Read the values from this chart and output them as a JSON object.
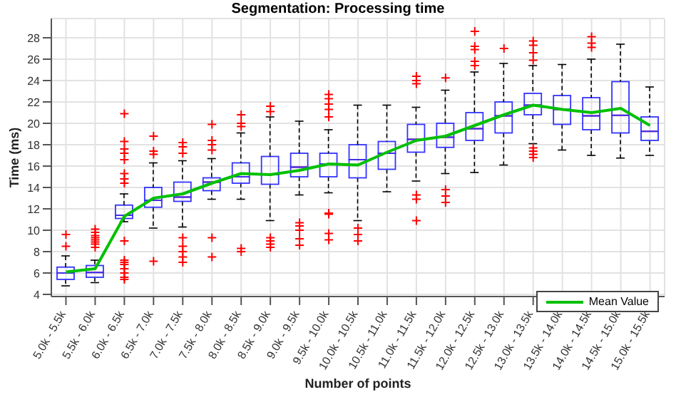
{
  "chart_data": {
    "type": "box",
    "title": "Segmentation: Processing time",
    "xlabel": "Number of points",
    "ylabel": "Time (ms)",
    "categories": [
      "5.0k - 5.5k",
      "5.5k - 6.0k",
      "6.0k - 6.5k",
      "6.5k - 7.0k",
      "7.0k - 7.5k",
      "7.5k - 8.0k",
      "8.0k - 8.5k",
      "8.5k - 9.0k",
      "9.0k - 9.5k",
      "9.5k - 10.0k",
      "10.0k - 10.5k",
      "10.5k - 11.0k",
      "11.0k - 11.5k",
      "11.5k - 12.0k",
      "12.0k - 12.5k",
      "12.5k - 13.0k",
      "13.0k - 13.5k",
      "13.5k - 14.0k",
      "14.0k - 14.5k",
      "14.5k - 15.0k",
      "15.0k - 15.5k"
    ],
    "ylim": [
      3.8,
      29.8
    ],
    "yticks": [
      4,
      6,
      8,
      10,
      12,
      14,
      16,
      18,
      20,
      22,
      24,
      26,
      28
    ],
    "grid": true,
    "legend": "bottom right",
    "series": [
      {
        "color": "#3333ff",
        "boxes": [
          {
            "low": 4.8,
            "q1": 5.4,
            "median": 6.0,
            "q3": 6.55,
            "high": 7.6,
            "outliers": [
              8.5,
              9.6
            ]
          },
          {
            "low": 5.1,
            "q1": 5.6,
            "median": 6.05,
            "q3": 6.7,
            "high": 7.2,
            "outliers": [
              8.4,
              8.7,
              8.9,
              9.1,
              9.3,
              9.5,
              9.8,
              10.1
            ]
          },
          {
            "low": 10.8,
            "q1": 11.1,
            "median": 11.4,
            "q3": 12.35,
            "high": 13.4,
            "outliers": [
              20.9,
              18.3,
              17.6,
              17.2,
              16.6,
              15.3,
              14.8,
              14.4,
              9.0,
              7.2,
              7.0,
              6.8,
              6.4,
              6.0,
              5.6,
              5.4
            ]
          },
          {
            "low": 10.2,
            "q1": 12.15,
            "median": 12.8,
            "q3": 14.0,
            "high": 16.3,
            "outliers": [
              18.8,
              17.4,
              17.1,
              7.1
            ]
          },
          {
            "low": 10.3,
            "q1": 12.7,
            "median": 13.1,
            "q3": 14.5,
            "high": 16.5,
            "outliers": [
              18.2,
              17.8,
              17.2,
              9.3,
              8.5,
              8.0,
              7.5,
              7.0
            ]
          },
          {
            "low": 12.9,
            "q1": 13.7,
            "median": 14.5,
            "q3": 14.9,
            "high": 16.7,
            "outliers": [
              19.9,
              18.4,
              18.0,
              17.5,
              9.3,
              7.5
            ]
          },
          {
            "low": 12.9,
            "q1": 14.4,
            "median": 15.0,
            "q3": 16.3,
            "high": 19.1,
            "outliers": [
              20.8,
              20.0,
              19.7,
              8.3,
              8.0
            ]
          },
          {
            "low": 10.9,
            "q1": 14.3,
            "median": 15.2,
            "q3": 16.9,
            "high": 20.6,
            "outliers": [
              21.6,
              21.1,
              9.3,
              9.0,
              8.7,
              8.4
            ]
          },
          {
            "low": 13.3,
            "q1": 15.0,
            "median": 15.9,
            "q3": 17.2,
            "high": 20.2,
            "outliers": [
              10.7,
              10.4,
              10.0,
              9.2,
              8.6
            ]
          },
          {
            "low": 13.5,
            "q1": 15.0,
            "median": 16.2,
            "q3": 17.2,
            "high": 19.4,
            "outliers": [
              22.7,
              22.3,
              21.8,
              21.3,
              20.6,
              11.6,
              11.5,
              9.7,
              9.1
            ]
          },
          {
            "low": 10.9,
            "q1": 14.9,
            "median": 16.6,
            "q3": 18.0,
            "high": 21.7,
            "outliers": [
              10.2,
              9.6,
              9.0
            ]
          },
          {
            "low": 13.6,
            "q1": 15.7,
            "median": 17.2,
            "q3": 18.3,
            "high": 21.7
          },
          {
            "low": 14.6,
            "q1": 17.3,
            "median": 18.5,
            "q3": 19.9,
            "high": 21.5,
            "outliers": [
              24.4,
              24.0,
              23.7,
              13.3,
              12.9,
              10.9
            ]
          },
          {
            "low": 15.3,
            "q1": 17.75,
            "median": 18.7,
            "q3": 20.0,
            "high": 23.1,
            "outliers": [
              24.25,
              13.8,
              13.2,
              12.6
            ]
          },
          {
            "low": 15.4,
            "q1": 18.4,
            "median": 19.5,
            "q3": 21.0,
            "high": 24.8,
            "outliers": [
              28.6,
              27.2,
              26.9,
              25.8,
              25.4
            ]
          },
          {
            "low": 16.1,
            "q1": 19.1,
            "median": 20.7,
            "q3": 22.0,
            "high": 25.6,
            "outliers": [
              27.0
            ]
          },
          {
            "low": 18.1,
            "q1": 20.8,
            "median": 21.7,
            "q3": 22.8,
            "high": 25.4,
            "outliers": [
              27.7,
              27.3,
              26.6,
              25.9,
              17.7,
              17.4,
              17.1,
              16.8
            ]
          },
          {
            "low": 17.5,
            "q1": 19.9,
            "median": 21.3,
            "q3": 22.6,
            "high": 25.5
          },
          {
            "low": 17.0,
            "q1": 19.4,
            "median": 20.7,
            "q3": 22.4,
            "high": 26.0,
            "outliers": [
              28.1,
              27.5,
              27.1
            ]
          },
          {
            "low": 16.75,
            "q1": 19.1,
            "median": 20.75,
            "q3": 23.9,
            "high": 27.4
          },
          {
            "low": 17.0,
            "q1": 18.4,
            "median": 19.25,
            "q3": 20.6,
            "high": 23.4
          }
        ]
      },
      {
        "type": "line",
        "name": "Mean Value",
        "color": "#00c000",
        "values": [
          6.1,
          6.4,
          11.3,
          13.0,
          13.4,
          14.4,
          15.3,
          15.2,
          15.6,
          16.2,
          16.1,
          17.3,
          18.4,
          18.8,
          19.8,
          20.8,
          21.7,
          21.3,
          21.0,
          21.4,
          19.8
        ]
      }
    ]
  }
}
